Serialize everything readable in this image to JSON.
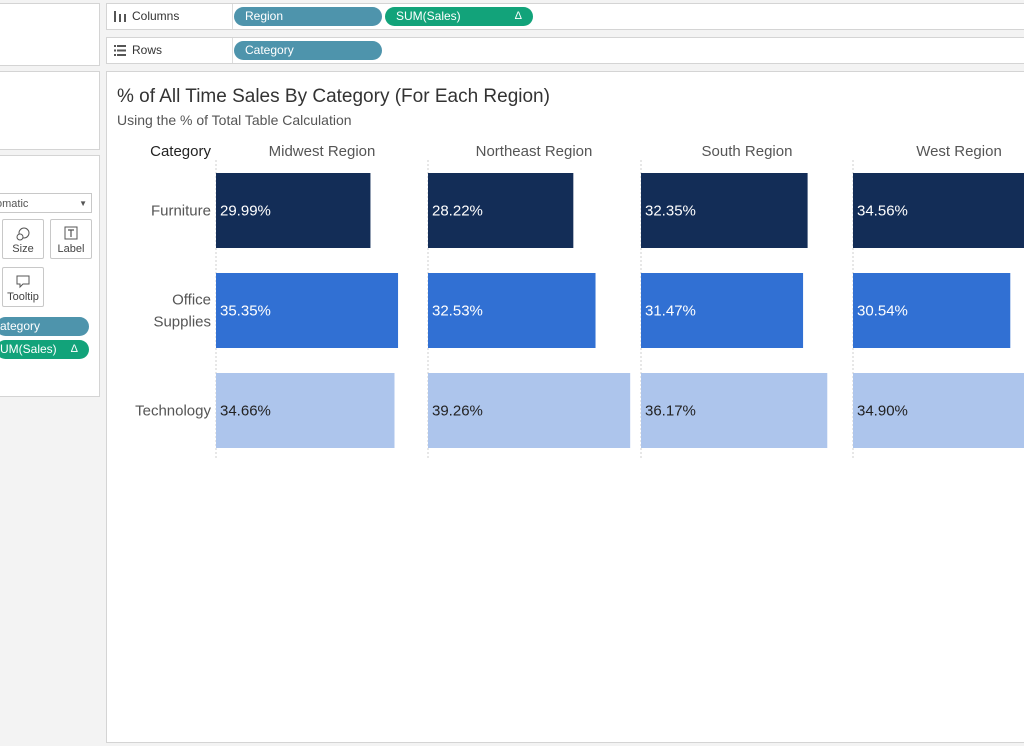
{
  "shelves": {
    "columns": {
      "label": "Columns",
      "pills": [
        {
          "text": "Region"
        },
        {
          "text": "SUM(Sales)",
          "flag": "Δ"
        }
      ]
    },
    "rows": {
      "label": "Rows",
      "pills": [
        {
          "text": "Category"
        }
      ]
    }
  },
  "marks": {
    "type_value": "omatic",
    "buttons": {
      "size": "Size",
      "label": "Label",
      "tooltip": "Tooltip"
    },
    "pills": [
      {
        "text": "ategory"
      },
      {
        "text": "UM(Sales)",
        "flag": "Δ"
      }
    ]
  },
  "chart": {
    "title": "% of All Time Sales By Category (For Each Region)",
    "subtitle": "Using the % of Total Table Calculation"
  },
  "chart_data": {
    "type": "bar",
    "orientation": "horizontal",
    "row_header": "Category",
    "categories": [
      "Furniture",
      "Office Supplies",
      "Technology"
    ],
    "category_lines": [
      [
        "Furniture"
      ],
      [
        "Office",
        "Supplies"
      ],
      [
        "Technology"
      ]
    ],
    "panels": [
      "Midwest Region",
      "Northeast Region",
      "South Region",
      "West Region"
    ],
    "values": [
      [
        29.99,
        28.22,
        32.35,
        34.56
      ],
      [
        35.35,
        32.53,
        31.47,
        30.54
      ],
      [
        34.66,
        39.26,
        36.17,
        34.9
      ]
    ],
    "labels": [
      [
        "29.99%",
        "28.22%",
        "32.35%",
        "34.56%"
      ],
      [
        "35.35%",
        "32.53%",
        "31.47%",
        "30.54%"
      ],
      [
        "34.66%",
        "39.26%",
        "36.17%",
        "34.90%"
      ]
    ],
    "colors": [
      "#132d57",
      "#3170d3",
      "#adc5ec"
    ],
    "label_colors": [
      "#ffffff",
      "#ffffff",
      "#222222"
    ],
    "xlim": [
      0,
      40
    ],
    "grid": false
  }
}
